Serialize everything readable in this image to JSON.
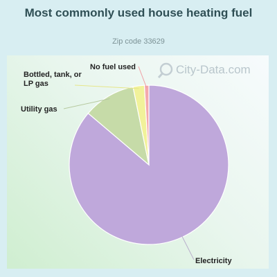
{
  "chart_data": {
    "type": "pie",
    "title": "Most commonly used house heating fuel",
    "subtitle": "Zip code 33629",
    "slices": [
      {
        "label": "Electricity",
        "value": 86.2,
        "color": "#bfa8db"
      },
      {
        "label": "Utility gas",
        "value": 10.6,
        "color": "#c6dba8"
      },
      {
        "label": "Bottled, tank, or LP gas",
        "value": 2.3,
        "color": "#f1f29a"
      },
      {
        "label": "No fuel used",
        "value": 0.9,
        "color": "#f4a9ad"
      }
    ],
    "legend": "none"
  },
  "watermark": {
    "text": "City-Data.com",
    "icon": "magnifier-icon"
  },
  "colors": {
    "title": "#2f4f55",
    "subtitle": "#7c9296",
    "background": "#d8eef2"
  }
}
